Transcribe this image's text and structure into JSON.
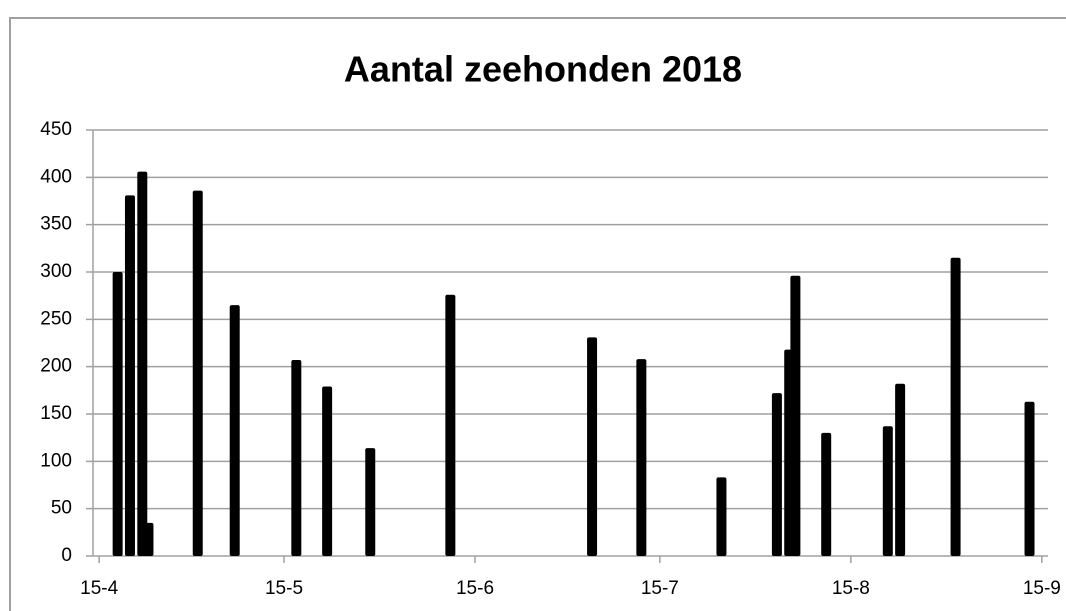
{
  "chart_data": {
    "type": "bar",
    "title": "Aantal zeehonden 2018",
    "x": [
      "18-4",
      "20-4",
      "22-4",
      "23-4",
      "1-5",
      "7-5",
      "17-5",
      "22-5",
      "29-5",
      "11-6",
      "4-7",
      "12-7",
      "25-7",
      "3-8",
      "5-8",
      "6-8",
      "11-8",
      "21-8",
      "23-8",
      "1-9",
      "13-9"
    ],
    "values": [
      300,
      381,
      406,
      35,
      386,
      265,
      207,
      179,
      114,
      276,
      231,
      208,
      83,
      172,
      218,
      296,
      130,
      137,
      182,
      315,
      163
    ],
    "color": "#000000",
    "xlim": [
      "14-4",
      "16-9"
    ],
    "xticks": [
      "15-4",
      "15-5",
      "15-6",
      "15-7",
      "15-8",
      "15-9"
    ],
    "ylim": [
      0,
      450
    ],
    "yticks": [
      0,
      50,
      100,
      150,
      200,
      250,
      300,
      350,
      400,
      450
    ],
    "grid": true
  }
}
